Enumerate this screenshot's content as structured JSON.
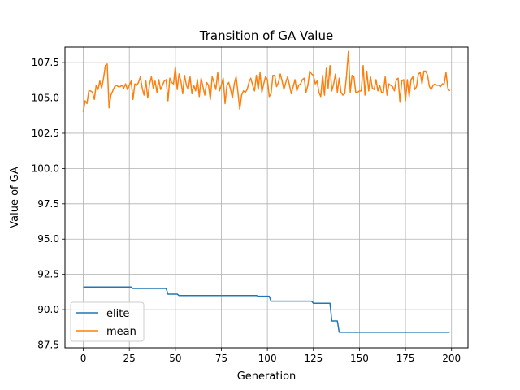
{
  "chart_data": {
    "type": "line",
    "title": "Transition of GA Value",
    "xlabel": "Generation",
    "ylabel": "Value of GA",
    "xlim": [
      -9.95,
      208.95
    ],
    "ylim": [
      87.3,
      108.6
    ],
    "x_ticks": [
      0,
      25,
      50,
      75,
      100,
      125,
      150,
      175,
      200
    ],
    "x_tick_labels": [
      "0",
      "25",
      "50",
      "75",
      "100",
      "125",
      "150",
      "175",
      "200"
    ],
    "y_ticks": [
      87.5,
      90.0,
      92.5,
      95.0,
      97.5,
      100.0,
      102.5,
      105.0,
      107.5
    ],
    "y_tick_labels": [
      "87.5",
      "90.0",
      "92.5",
      "95.0",
      "97.5",
      "100.0",
      "102.5",
      "105.0",
      "107.5"
    ],
    "grid": true,
    "legend_position": "lower-left",
    "series": [
      {
        "name": "elite",
        "color": "#1f77b4",
        "steps": [
          [
            0,
            91.6
          ],
          [
            26,
            91.6
          ],
          [
            27,
            91.5
          ],
          [
            45,
            91.5
          ],
          [
            46,
            91.1
          ],
          [
            51,
            91.1
          ],
          [
            52,
            91.0
          ],
          [
            94,
            91.0
          ],
          [
            95,
            90.95
          ],
          [
            101,
            90.95
          ],
          [
            102,
            90.6
          ],
          [
            124,
            90.6
          ],
          [
            125,
            90.45
          ],
          [
            134,
            90.45
          ],
          [
            135,
            89.2
          ],
          [
            138,
            89.2
          ],
          [
            139,
            88.4
          ],
          [
            199,
            88.4
          ]
        ]
      },
      {
        "name": "mean",
        "color": "#ff7f0e",
        "x_start": 0,
        "x_step": 1,
        "values": [
          104.0,
          104.8,
          104.6,
          105.5,
          105.5,
          105.4,
          104.9,
          105.9,
          105.6,
          106.2,
          105.7,
          106.4,
          107.3,
          107.4,
          104.3,
          105.2,
          105.5,
          105.8,
          105.9,
          105.8,
          105.8,
          105.9,
          105.7,
          106.0,
          105.6,
          105.9,
          106.2,
          104.9,
          106.0,
          105.9,
          106.1,
          106.5,
          105.7,
          105.2,
          106.2,
          105.0,
          106.0,
          106.5,
          105.7,
          106.2,
          105.4,
          106.3,
          105.6,
          105.9,
          106.2,
          106.3,
          104.8,
          106.4,
          106.1,
          106.0,
          107.2,
          105.6,
          106.7,
          106.2,
          105.3,
          106.6,
          105.9,
          105.6,
          106.5,
          105.3,
          105.9,
          105.5,
          106.3,
          105.1,
          106.4,
          105.8,
          105.2,
          106.1,
          105.9,
          104.9,
          106.5,
          106.1,
          105.6,
          106.8,
          105.5,
          105.9,
          106.4,
          104.6,
          105.9,
          106.1,
          105.6,
          105.0,
          106.0,
          106.5,
          105.4,
          104.2,
          105.2,
          105.5,
          105.4,
          105.6,
          106.1,
          106.4,
          105.9,
          105.5,
          106.6,
          105.6,
          106.8,
          105.4,
          106.0,
          106.5,
          106.3,
          105.1,
          105.3,
          106.6,
          106.6,
          105.8,
          106.1,
          106.7,
          106.2,
          105.6,
          106.1,
          106.5,
          105.9,
          105.3,
          105.8,
          106.3,
          105.5,
          105.9,
          106.0,
          106.3,
          106.4,
          105.4,
          105.9,
          106.9,
          106.7,
          106.6,
          106.0,
          106.2,
          105.4,
          105.1,
          106.6,
          105.2,
          107.1,
          105.7,
          107.3,
          105.5,
          106.0,
          106.7,
          105.4,
          106.4,
          105.4,
          105.2,
          105.3,
          106.6,
          108.3,
          105.4,
          106.6,
          106.5,
          105.4,
          105.4,
          105.5,
          105.5,
          107.3,
          105.2,
          106.9,
          105.5,
          106.5,
          105.7,
          105.6,
          106.3,
          105.5,
          105.9,
          105.4,
          105.4,
          106.5,
          105.2,
          106.0,
          105.9,
          105.8,
          105.5,
          106.3,
          106.4,
          104.7,
          106.2,
          106.3,
          104.8,
          106.3,
          105.1,
          106.3,
          106.5,
          105.6,
          105.8,
          106.7,
          106.8,
          106.0,
          106.9,
          106.9,
          106.6,
          105.8,
          105.6,
          105.9,
          106.0,
          105.9,
          105.9,
          105.8,
          106.0,
          106.0,
          106.8,
          105.7,
          105.5
        ]
      }
    ]
  }
}
